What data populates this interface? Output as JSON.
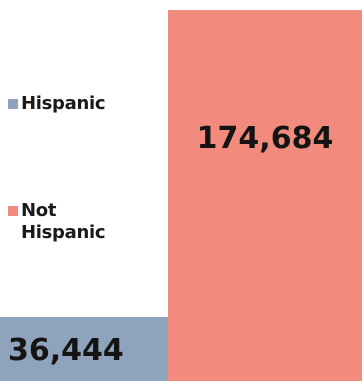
{
  "chart_data": {
    "type": "bar",
    "stacked": true,
    "categories": [
      ""
    ],
    "series": [
      {
        "name": "Hispanic",
        "values": [
          36444
        ],
        "value_label": "36,444",
        "color": "#8fa3bd"
      },
      {
        "name": "Not Hispanic",
        "values": [
          174684
        ],
        "value_label": "174,684",
        "color": "#f28b7e"
      }
    ],
    "title": "",
    "xlabel": "",
    "ylabel": "",
    "ylim": [
      0,
      211128
    ],
    "grid": false,
    "legend_position": "left"
  }
}
